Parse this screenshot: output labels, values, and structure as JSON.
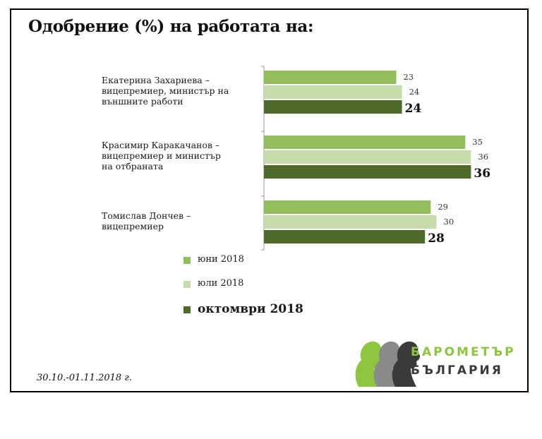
{
  "chart_data": {
    "type": "bar",
    "orientation": "horizontal",
    "title": "Одобрение (%) на работата на:",
    "categories": [
      [
        "Екатерина Захариева –",
        "вицепремиер, министър на",
        "външните работи"
      ],
      [
        "Красимир Каракачанов –",
        "вицепремиер и министър",
        "на отбраната"
      ],
      [
        "Томислав Дончев –",
        "вицепремиер"
      ]
    ],
    "series": [
      {
        "name": "юни 2018",
        "values": [
          23,
          35,
          29
        ],
        "color": "#92bd5a"
      },
      {
        "name": "юли 2018",
        "values": [
          24,
          36,
          30
        ],
        "color": "#c7dcab"
      },
      {
        "name": "октомври 2018",
        "values": [
          24,
          36,
          28
        ],
        "color": "#4f6b2a"
      }
    ],
    "xlim": [
      0,
      38
    ],
    "legend_position": "bottom-left"
  },
  "footer": {
    "date": "30.10.-01.11.2018  г."
  },
  "logo": {
    "line1": "БАРОМЕТЪР",
    "line2": "БЪЛГАРИЯ",
    "accent": "#8cc63f",
    "dark": "#3a3a3a"
  }
}
